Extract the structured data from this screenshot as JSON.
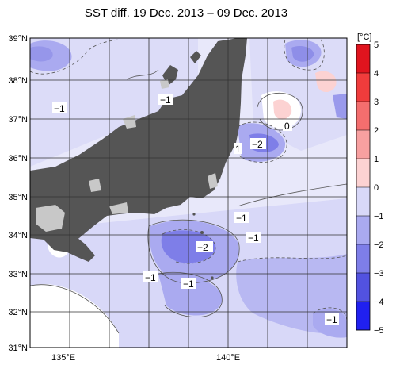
{
  "title": "SST diff. 19 Dec. 2013 – 09 Dec. 2013",
  "lat_labels": [
    "39°N",
    "38°N",
    "37°N",
    "36°N",
    "35°N",
    "34°N",
    "33°N",
    "32°N",
    "31°N"
  ],
  "lon_labels": [
    "135°E",
    "140°E"
  ],
  "colorbar": {
    "unit": "[°C]",
    "ticks": [
      "5",
      "4",
      "3",
      "2",
      "1",
      "0",
      "−1",
      "−2",
      "−3",
      "−4",
      "−5"
    ],
    "colors": [
      "#e0141e",
      "#f03c3c",
      "#f46e6e",
      "#f8a0a0",
      "#fcd2d2",
      "#ffffff",
      "#d8d8f8",
      "#aaaaf0",
      "#7e7ee8",
      "#5252e0",
      "#2020f0"
    ]
  },
  "contour_labels": {
    "a": "−1",
    "b": "−1",
    "c": "0",
    "d": "−2",
    "e": "1",
    "f": "−1",
    "g": "−1",
    "h": "−2",
    "i": "−1",
    "j": "−1",
    "k": "−1"
  },
  "colors": {
    "land": "#555555",
    "no_data": "#c8c8c8",
    "grid": "#333333"
  }
}
